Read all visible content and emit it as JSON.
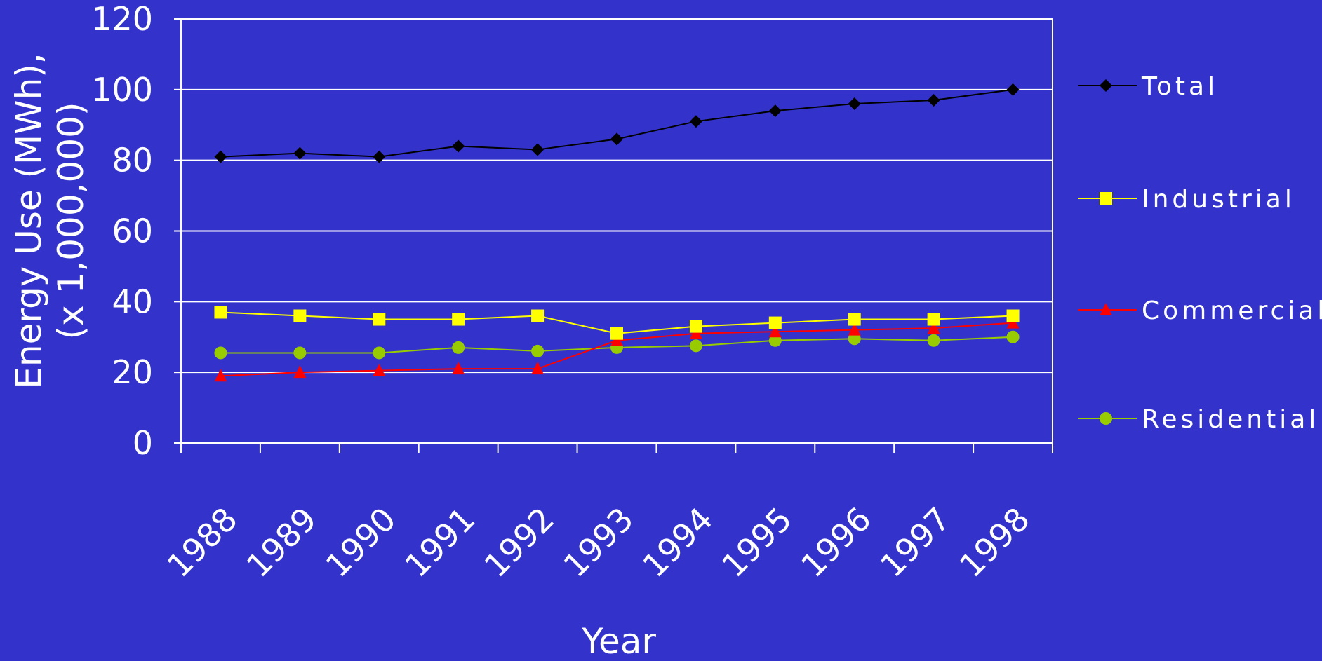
{
  "chart_data": {
    "type": "line",
    "title": "",
    "xlabel": "Year",
    "ylabel_line1": "Energy Use (MWh),",
    "ylabel_line2": "(x 1,000,000)",
    "categories": [
      "1988",
      "1989",
      "1990",
      "1991",
      "1992",
      "1993",
      "1994",
      "1995",
      "1996",
      "1997",
      "1998"
    ],
    "ylim": [
      0,
      120
    ],
    "yticks": [
      "0",
      "20",
      "40",
      "60",
      "80",
      "100",
      "120"
    ],
    "grid": true,
    "legend_position": "right",
    "background_color": "#3333CC",
    "series": [
      {
        "name": "Total",
        "color": "#000000",
        "marker": "diamond",
        "values": [
          81,
          82,
          81,
          84,
          83,
          86,
          91,
          94,
          96,
          97,
          100
        ]
      },
      {
        "name": "Industrial",
        "color": "#FFFF00",
        "marker": "square",
        "values": [
          37,
          36,
          35,
          35,
          36,
          31,
          33,
          34,
          35,
          35,
          36
        ]
      },
      {
        "name": "Commercial",
        "color": "#FF0000",
        "marker": "triangle",
        "values": [
          19,
          20,
          20.5,
          21,
          21,
          29,
          31,
          31.5,
          32,
          32.5,
          34
        ]
      },
      {
        "name": "Residential",
        "color": "#99CC00",
        "marker": "circle",
        "values": [
          25.5,
          25.5,
          25.5,
          27,
          26,
          27,
          27.5,
          29,
          29.5,
          29,
          30
        ]
      }
    ]
  }
}
